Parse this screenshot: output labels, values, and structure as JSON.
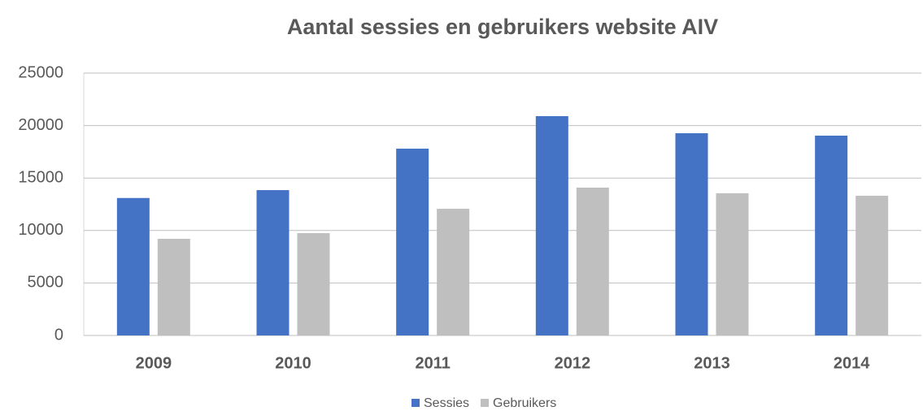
{
  "chart_data": {
    "type": "bar",
    "title": "Aantal sessies en gebruikers website AIV",
    "categories": [
      "2009",
      "2010",
      "2011",
      "2012",
      "2013",
      "2014"
    ],
    "series": [
      {
        "name": "Sessies",
        "color": "#4472c4",
        "values": [
          13100,
          13850,
          17800,
          20900,
          19270,
          19040
        ]
      },
      {
        "name": "Gebruikers",
        "color": "#bfbfbf",
        "values": [
          9210,
          9750,
          12070,
          14090,
          13550,
          13310
        ]
      }
    ],
    "ylim": [
      0,
      25000
    ],
    "yticks": [
      0,
      5000,
      10000,
      15000,
      20000,
      25000
    ],
    "grid": true,
    "legend": "bottom"
  }
}
